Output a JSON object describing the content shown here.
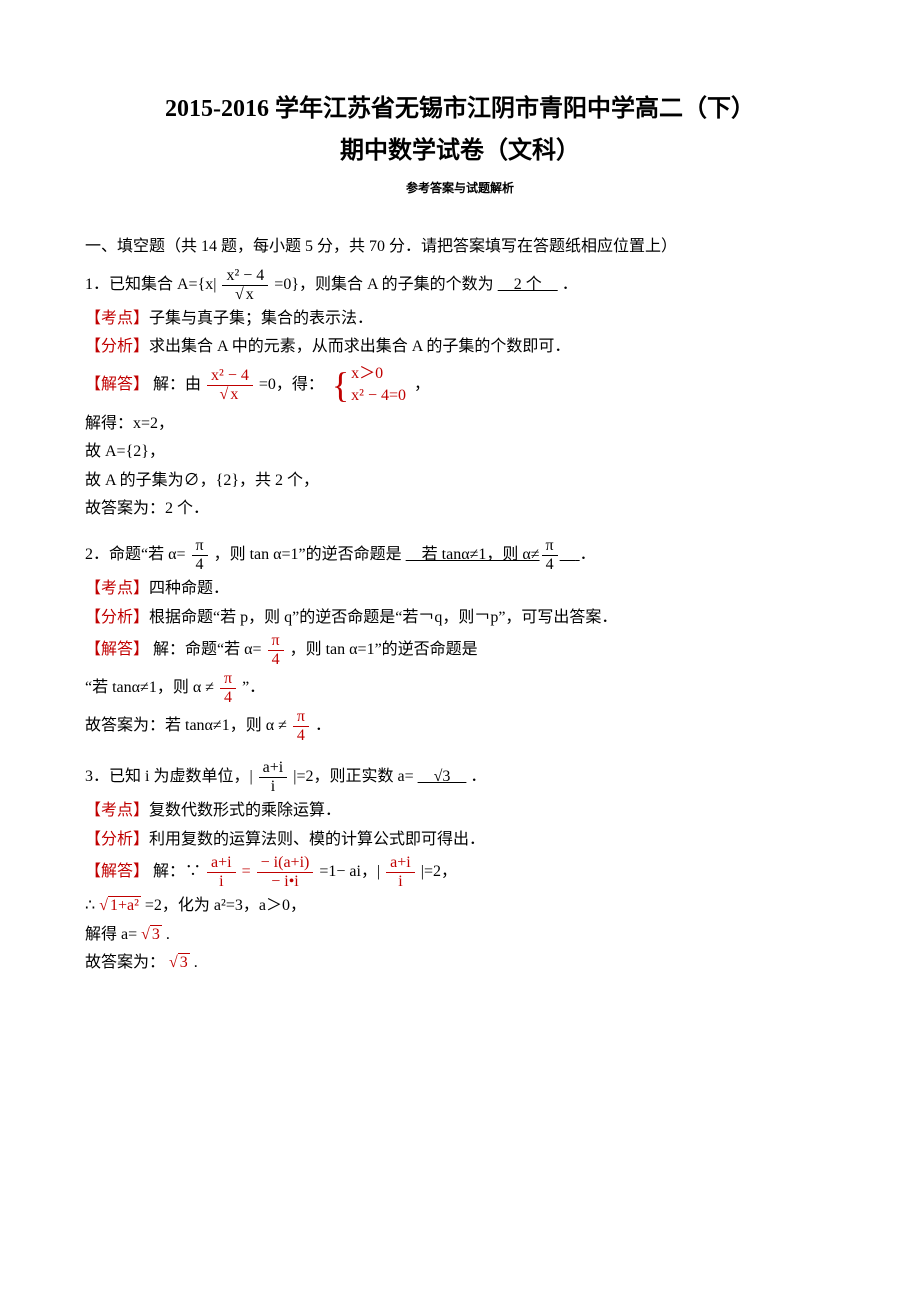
{
  "title_line1": "2015-2016 学年江苏省无锡市江阴市青阳中学高二（下）",
  "title_line2": "期中数学试卷（文科）",
  "subtitle": "参考答案与试题解析",
  "section1_heading": "一、填空题（共 14 题，每小题 5 分，共 70 分．请把答案填写在答题纸相应位置上）",
  "colors": {
    "tag_blue": "#0666c8",
    "tag_red": "#c00000",
    "text": "#000000",
    "background": "#ffffff"
  },
  "labels": {
    "kaodian": "【考点】",
    "fenxi": "【分析】",
    "jieda": "【解答】"
  },
  "q1": {
    "stem_prefix": "1．已知集合 A={x|",
    "frac_num": "x² − 4",
    "frac_den_sqrt": "x",
    "stem_mid": "=0}，则集合 A 的子集的个数为",
    "answer": "　2 个　",
    "stem_suffix": "．",
    "kaodian": "子集与真子集；集合的表示法．",
    "fenxi": "求出集合 A 中的元素，从而求出集合 A 的子集的个数即可．",
    "jieda_prefix": "解：由",
    "jieda_mid": "=0，得：",
    "sys_r1": "x＞0",
    "sys_r2": "x² − 4=0",
    "jieda_suffix": "，",
    "l1": "解得：x=2，",
    "l2": "故 A={2}，",
    "l3": "故 A 的子集为∅，{2}，共 2 个，",
    "l4": "故答案为：2 个．"
  },
  "q2": {
    "stem_a": "2．命题“若 α=",
    "pi": "π",
    "four": "4",
    "stem_b": "，则 tan α=1”的逆否命题是",
    "ans_a": "　若 tanα≠1，则 α≠",
    "ans_b": "　",
    "stem_c": "．",
    "kaodian": "四种命题．",
    "fenxi": "根据命题“若 p，则 q”的逆否命题是“若￢q，则￢p”，可写出答案．",
    "jieda_a": "解：命题“若 α=",
    "jieda_b": "，则 tan α=1”的逆否命题是",
    "line_a": "“若 tanα≠1，则 α ≠",
    "line_b": "”．",
    "ans_line_a": "故答案为：若 tanα≠1，则 α ≠",
    "ans_line_b": "．"
  },
  "q3": {
    "stem_a": "3．已知 i 为虚数单位，|",
    "num1": "a+i",
    "den1": "i",
    "stem_b": "|=2，则正实数 a=",
    "ans": "　√3　",
    "stem_c": "．",
    "kaodian": "复数代数形式的乘除运算．",
    "fenxi": "利用复数的运算法则、模的计算公式即可得出．",
    "jieda_a": "解：∵",
    "eq_mid": "=",
    "num2": "− i(a+i)",
    "den2": "− i•i",
    "eq_res": "=1− ai，|",
    "eq_end": "|=2，",
    "l1_a": "∴",
    "l1_sqrt": "1+a²",
    "l1_b": "=2，化为 a²=3，a＞0，",
    "l2_a": "解得 a=",
    "l2_sqrt": "3",
    "l2_b": ".",
    "l3_a": "故答案为：",
    "l3_sqrt": "3",
    "l3_b": "."
  }
}
